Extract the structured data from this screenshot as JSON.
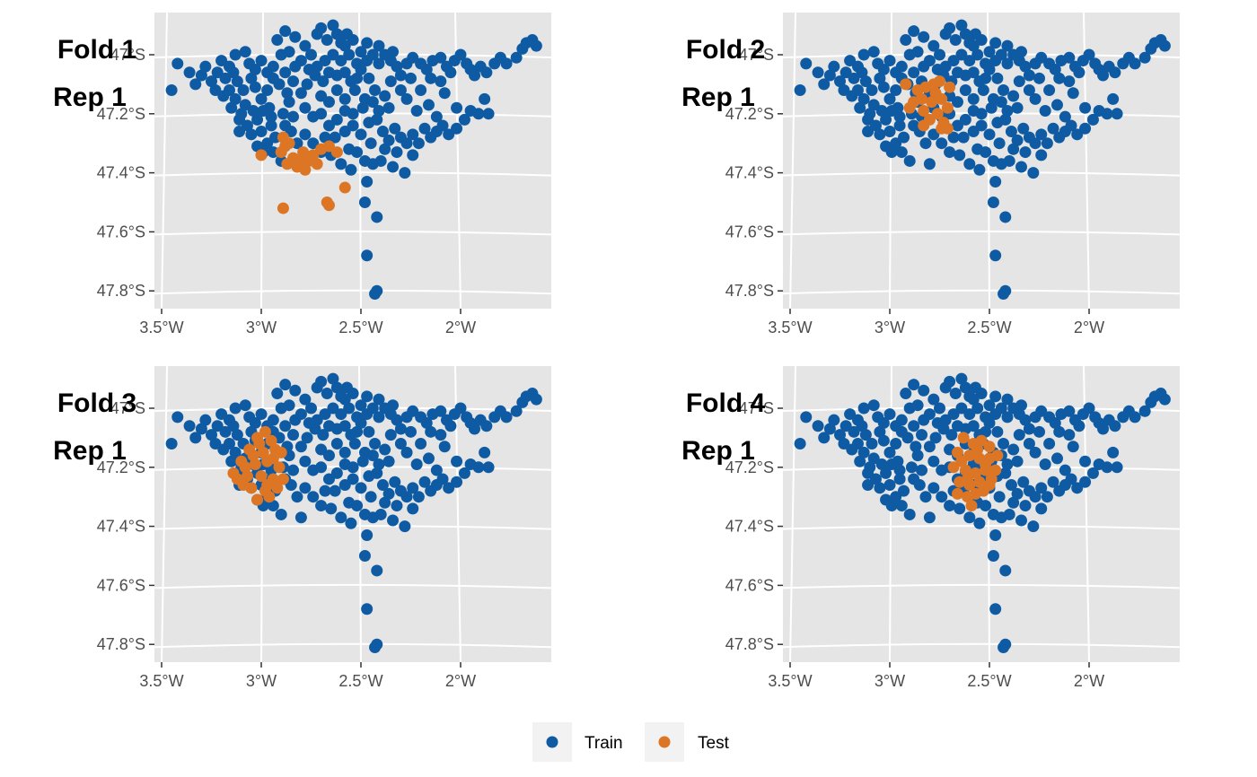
{
  "chart_data": {
    "type": "scatter",
    "colors": {
      "Train": "#0f5ba3",
      "Test": "#dc7624",
      "panel_bg": "#e5e5e5",
      "grid": "#ffffff",
      "tick_text": "#4d4d4d"
    },
    "xlim": [
      -3.55,
      -1.55
    ],
    "ylim": [
      -47.86,
      -46.87
    ],
    "x_ticks": [
      {
        "value": -3.5,
        "label": "3.5°W"
      },
      {
        "value": -3.0,
        "label": "3°W"
      },
      {
        "value": -2.5,
        "label": "2.5°W"
      },
      {
        "value": -2.0,
        "label": "2°W"
      }
    ],
    "y_ticks": [
      {
        "value": -47.0,
        "label": "47°S"
      },
      {
        "value": -47.2,
        "label": "47.2°S"
      },
      {
        "value": -47.4,
        "label": "47.4°S"
      },
      {
        "value": -47.6,
        "label": "47.6°S"
      },
      {
        "value": -47.8,
        "label": "47.8°S"
      }
    ],
    "legend": {
      "position": "bottom",
      "entries": [
        {
          "name": "Train"
        },
        {
          "name": "Test"
        }
      ]
    },
    "panels": [
      {
        "title_line1": "Fold 1",
        "title_line2": "Rep 1",
        "test_points": [
          [
            -2.89,
            -47.28
          ],
          [
            -2.86,
            -47.3
          ],
          [
            -2.9,
            -47.33
          ],
          [
            -2.84,
            -47.35
          ],
          [
            -2.79,
            -47.33
          ],
          [
            -2.76,
            -47.36
          ],
          [
            -2.82,
            -47.38
          ],
          [
            -2.74,
            -47.34
          ],
          [
            -2.7,
            -47.32
          ],
          [
            -2.66,
            -47.31
          ],
          [
            -2.78,
            -47.39
          ],
          [
            -2.87,
            -47.37
          ],
          [
            -3.0,
            -47.34
          ],
          [
            -2.62,
            -47.33
          ],
          [
            -2.58,
            -47.45
          ],
          [
            -2.67,
            -47.5
          ],
          [
            -2.66,
            -47.51
          ],
          [
            -2.89,
            -47.52
          ],
          [
            -2.81,
            -47.36
          ],
          [
            -2.72,
            -47.37
          ],
          [
            -2.88,
            -47.31
          ]
        ]
      },
      {
        "title_line1": "Fold 2",
        "title_line2": "Rep 1",
        "test_points": [
          [
            -2.92,
            -47.1
          ],
          [
            -2.86,
            -47.12
          ],
          [
            -2.82,
            -47.11
          ],
          [
            -2.78,
            -47.1
          ],
          [
            -2.75,
            -47.09
          ],
          [
            -2.7,
            -47.11
          ],
          [
            -2.84,
            -47.15
          ],
          [
            -2.79,
            -47.16
          ],
          [
            -2.74,
            -47.15
          ],
          [
            -2.9,
            -47.18
          ],
          [
            -2.83,
            -47.19
          ],
          [
            -2.76,
            -47.2
          ],
          [
            -2.71,
            -47.18
          ],
          [
            -2.8,
            -47.22
          ],
          [
            -2.73,
            -47.23
          ],
          [
            -2.74,
            -47.25
          ],
          [
            -2.83,
            -47.24
          ],
          [
            -2.88,
            -47.16
          ],
          [
            -2.77,
            -47.13
          ],
          [
            -2.71,
            -47.25
          ]
        ]
      },
      {
        "title_line1": "Fold 3",
        "title_line2": "Rep 1",
        "test_points": [
          [
            -2.98,
            -47.08
          ],
          [
            -3.02,
            -47.1
          ],
          [
            -2.95,
            -47.11
          ],
          [
            -3.06,
            -47.14
          ],
          [
            -2.99,
            -47.15
          ],
          [
            -2.93,
            -47.14
          ],
          [
            -3.1,
            -47.18
          ],
          [
            -3.03,
            -47.19
          ],
          [
            -2.97,
            -47.18
          ],
          [
            -2.91,
            -47.2
          ],
          [
            -3.14,
            -47.22
          ],
          [
            -3.07,
            -47.23
          ],
          [
            -3.0,
            -47.23
          ],
          [
            -2.94,
            -47.24
          ],
          [
            -3.05,
            -47.27
          ],
          [
            -2.98,
            -47.28
          ],
          [
            -2.92,
            -47.27
          ],
          [
            -3.02,
            -47.31
          ],
          [
            -2.96,
            -47.3
          ],
          [
            -3.09,
            -47.26
          ],
          [
            -2.89,
            -47.24
          ],
          [
            -3.08,
            -47.2
          ],
          [
            -2.94,
            -47.17
          ],
          [
            -3.01,
            -47.12
          ],
          [
            -2.97,
            -47.26
          ],
          [
            -3.04,
            -47.16
          ],
          [
            -2.9,
            -47.15
          ],
          [
            -3.12,
            -47.24
          ]
        ]
      },
      {
        "title_line1": "Fold 4",
        "title_line2": "Rep 1",
        "test_points": [
          [
            -2.63,
            -47.1
          ],
          [
            -2.58,
            -47.12
          ],
          [
            -2.54,
            -47.11
          ],
          [
            -2.5,
            -47.13
          ],
          [
            -2.66,
            -47.15
          ],
          [
            -2.6,
            -47.16
          ],
          [
            -2.55,
            -47.17
          ],
          [
            -2.5,
            -47.17
          ],
          [
            -2.46,
            -47.16
          ],
          [
            -2.68,
            -47.2
          ],
          [
            -2.62,
            -47.21
          ],
          [
            -2.57,
            -47.22
          ],
          [
            -2.52,
            -47.21
          ],
          [
            -2.47,
            -47.21
          ],
          [
            -2.65,
            -47.25
          ],
          [
            -2.6,
            -47.26
          ],
          [
            -2.55,
            -47.25
          ],
          [
            -2.5,
            -47.26
          ],
          [
            -2.66,
            -47.29
          ],
          [
            -2.61,
            -47.3
          ],
          [
            -2.57,
            -47.29
          ],
          [
            -2.59,
            -47.33
          ],
          [
            -2.53,
            -47.28
          ],
          [
            -2.64,
            -47.18
          ],
          [
            -2.49,
            -47.24
          ],
          [
            -2.56,
            -47.14
          ],
          [
            -2.61,
            -47.24
          ],
          [
            -2.52,
            -47.19
          ]
        ]
      }
    ],
    "train_points": [
      [
        -3.45,
        -47.12
      ],
      [
        -3.33,
        -47.1
      ],
      [
        -3.3,
        -47.07
      ],
      [
        -3.28,
        -47.04
      ],
      [
        -3.22,
        -47.06
      ],
      [
        -3.2,
        -47.02
      ],
      [
        -3.16,
        -47.04
      ],
      [
        -3.13,
        -47.0
      ],
      [
        -3.08,
        -46.99
      ],
      [
        -3.06,
        -47.03
      ],
      [
        -3.12,
        -47.09
      ],
      [
        -3.16,
        -47.12
      ],
      [
        -3.19,
        -47.14
      ],
      [
        -3.13,
        -47.15
      ],
      [
        -3.09,
        -47.12
      ],
      [
        -3.05,
        -47.08
      ],
      [
        -3.03,
        -47.11
      ],
      [
        -3.08,
        -47.17
      ],
      [
        -3.15,
        -47.18
      ],
      [
        -3.1,
        -47.2
      ],
      [
        -3.04,
        -47.19
      ],
      [
        -3.0,
        -47.15
      ],
      [
        -2.97,
        -47.12
      ],
      [
        -2.94,
        -47.08
      ],
      [
        -2.97,
        -47.06
      ],
      [
        -3.0,
        -47.02
      ],
      [
        -2.94,
        -47.04
      ],
      [
        -2.91,
        -47.1
      ],
      [
        -2.96,
        -47.18
      ],
      [
        -3.02,
        -47.22
      ],
      [
        -3.07,
        -47.24
      ],
      [
        -3.11,
        -47.22
      ],
      [
        -3.05,
        -47.27
      ],
      [
        -3.0,
        -47.26
      ],
      [
        -2.95,
        -47.24
      ],
      [
        -2.97,
        -47.3
      ],
      [
        -3.02,
        -47.31
      ],
      [
        -2.93,
        -47.28
      ],
      [
        -2.99,
        -47.33
      ],
      [
        -2.94,
        -47.33
      ],
      [
        -2.89,
        -47.2
      ],
      [
        -2.86,
        -47.16
      ],
      [
        -2.87,
        -47.13
      ],
      [
        -2.84,
        -47.09
      ],
      [
        -2.88,
        -47.06
      ],
      [
        -2.83,
        -47.04
      ],
      [
        -2.8,
        -47.02
      ],
      [
        -2.86,
        -46.99
      ],
      [
        -2.92,
        -46.95
      ],
      [
        -2.88,
        -46.92
      ],
      [
        -2.83,
        -46.94
      ],
      [
        -2.78,
        -46.97
      ],
      [
        -2.75,
        -47.0
      ],
      [
        -2.72,
        -46.93
      ],
      [
        -2.7,
        -46.91
      ],
      [
        -2.67,
        -46.95
      ],
      [
        -2.64,
        -46.9
      ],
      [
        -2.62,
        -46.93
      ],
      [
        -2.6,
        -46.96
      ],
      [
        -2.57,
        -46.93
      ],
      [
        -2.54,
        -46.95
      ],
      [
        -2.5,
        -46.99
      ],
      [
        -2.52,
        -47.03
      ],
      [
        -2.56,
        -47.0
      ],
      [
        -2.6,
        -47.02
      ],
      [
        -2.64,
        -47.0
      ],
      [
        -2.68,
        -47.02
      ],
      [
        -2.66,
        -47.06
      ],
      [
        -2.62,
        -47.07
      ],
      [
        -2.58,
        -47.06
      ],
      [
        -2.55,
        -47.09
      ],
      [
        -2.5,
        -47.05
      ],
      [
        -2.47,
        -47.02
      ],
      [
        -2.44,
        -47.0
      ],
      [
        -2.41,
        -47.03
      ],
      [
        -2.38,
        -47.0
      ],
      [
        -2.35,
        -47.02
      ],
      [
        -2.32,
        -47.04
      ],
      [
        -2.3,
        -47.07
      ],
      [
        -2.27,
        -47.03
      ],
      [
        -2.24,
        -47.01
      ],
      [
        -2.2,
        -47.03
      ],
      [
        -2.17,
        -47.05
      ],
      [
        -2.14,
        -47.02
      ],
      [
        -2.1,
        -47.01
      ],
      [
        -2.07,
        -47.04
      ],
      [
        -2.03,
        -47.02
      ],
      [
        -2.0,
        -47.0
      ],
      [
        -1.97,
        -47.03
      ],
      [
        -1.95,
        -47.05
      ],
      [
        -1.9,
        -47.04
      ],
      [
        -1.87,
        -47.06
      ],
      [
        -1.83,
        -47.03
      ],
      [
        -1.8,
        -47.01
      ],
      [
        -1.77,
        -47.03
      ],
      [
        -1.72,
        -47.01
      ],
      [
        -1.69,
        -46.98
      ],
      [
        -1.67,
        -46.96
      ],
      [
        -1.64,
        -46.95
      ],
      [
        -1.62,
        -46.97
      ],
      [
        -1.93,
        -47.07
      ],
      [
        -2.05,
        -47.06
      ],
      [
        -2.1,
        -47.09
      ],
      [
        -2.15,
        -47.08
      ],
      [
        -2.2,
        -47.12
      ],
      [
        -2.25,
        -47.08
      ],
      [
        -2.3,
        -47.12
      ],
      [
        -2.35,
        -47.09
      ],
      [
        -2.38,
        -47.14
      ],
      [
        -2.43,
        -47.12
      ],
      [
        -2.46,
        -47.08
      ],
      [
        -2.48,
        -47.15
      ],
      [
        -2.53,
        -47.12
      ],
      [
        -2.58,
        -47.15
      ],
      [
        -2.62,
        -47.12
      ],
      [
        -2.66,
        -47.16
      ],
      [
        -2.7,
        -47.14
      ],
      [
        -2.73,
        -47.07
      ],
      [
        -2.77,
        -47.1
      ],
      [
        -2.8,
        -47.13
      ],
      [
        -2.78,
        -47.18
      ],
      [
        -2.74,
        -47.21
      ],
      [
        -2.7,
        -47.2
      ],
      [
        -2.66,
        -47.24
      ],
      [
        -2.62,
        -47.22
      ],
      [
        -2.58,
        -47.26
      ],
      [
        -2.54,
        -47.24
      ],
      [
        -2.5,
        -47.27
      ],
      [
        -2.46,
        -47.23
      ],
      [
        -2.42,
        -47.22
      ],
      [
        -2.39,
        -47.26
      ],
      [
        -2.36,
        -47.29
      ],
      [
        -2.33,
        -47.25
      ],
      [
        -2.3,
        -47.28
      ],
      [
        -2.27,
        -47.3
      ],
      [
        -2.24,
        -47.27
      ],
      [
        -2.21,
        -47.3
      ],
      [
        -2.18,
        -47.25
      ],
      [
        -2.15,
        -47.28
      ],
      [
        -2.12,
        -47.26
      ],
      [
        -2.09,
        -47.24
      ],
      [
        -2.06,
        -47.27
      ],
      [
        -2.02,
        -47.25
      ],
      [
        -1.98,
        -47.22
      ],
      [
        -1.95,
        -47.19
      ],
      [
        -1.91,
        -47.2
      ],
      [
        -1.86,
        -47.2
      ],
      [
        -2.24,
        -47.34
      ],
      [
        -2.32,
        -47.33
      ],
      [
        -2.4,
        -47.36
      ],
      [
        -2.44,
        -47.37
      ],
      [
        -2.48,
        -47.36
      ],
      [
        -2.52,
        -47.33
      ],
      [
        -2.56,
        -47.32
      ],
      [
        -2.6,
        -47.37
      ],
      [
        -2.65,
        -47.34
      ],
      [
        -2.7,
        -47.33
      ],
      [
        -2.74,
        -47.3
      ],
      [
        -2.78,
        -47.27
      ],
      [
        -2.82,
        -47.3
      ],
      [
        -2.85,
        -47.26
      ],
      [
        -2.88,
        -47.24
      ],
      [
        -2.9,
        -47.36
      ],
      [
        -2.8,
        -47.37
      ],
      [
        -2.34,
        -47.38
      ],
      [
        -2.28,
        -47.4
      ],
      [
        -2.55,
        -47.39
      ],
      [
        -2.47,
        -47.43
      ],
      [
        -2.48,
        -47.5
      ],
      [
        -2.42,
        -47.55
      ],
      [
        -2.47,
        -47.68
      ],
      [
        -2.42,
        -47.8
      ],
      [
        -2.43,
        -47.81
      ],
      [
        -3.42,
        -47.03
      ],
      [
        -3.36,
        -47.06
      ],
      [
        -3.25,
        -47.09
      ],
      [
        -3.23,
        -47.12
      ],
      [
        -3.18,
        -47.08
      ],
      [
        -3.14,
        -47.06
      ],
      [
        -2.58,
        -47.19
      ],
      [
        -2.54,
        -47.2
      ],
      [
        -2.49,
        -47.18
      ],
      [
        -2.44,
        -47.16
      ],
      [
        -2.41,
        -47.19
      ],
      [
        -2.36,
        -47.18
      ],
      [
        -2.63,
        -47.28
      ],
      [
        -2.68,
        -47.28
      ],
      [
        -2.45,
        -47.3
      ],
      [
        -2.38,
        -47.32
      ],
      [
        -2.12,
        -47.21
      ],
      [
        -2.16,
        -47.17
      ],
      [
        -2.22,
        -47.19
      ],
      [
        -2.02,
        -47.18
      ],
      [
        -1.88,
        -47.15
      ],
      [
        -2.58,
        -46.97
      ],
      [
        -2.47,
        -46.96
      ],
      [
        -2.41,
        -46.97
      ],
      [
        -2.34,
        -46.99
      ],
      [
        -2.72,
        -47.04
      ],
      [
        -2.76,
        -47.05
      ],
      [
        -2.9,
        -47.0
      ],
      [
        -3.03,
        -47.05
      ],
      [
        -3.11,
        -47.26
      ],
      [
        -2.99,
        -47.19
      ],
      [
        -2.95,
        -47.21
      ],
      [
        -2.84,
        -47.21
      ],
      [
        -2.69,
        -47.09
      ],
      [
        -2.52,
        -47.08
      ],
      [
        -2.27,
        -47.15
      ],
      [
        -2.08,
        -47.13
      ]
    ]
  }
}
